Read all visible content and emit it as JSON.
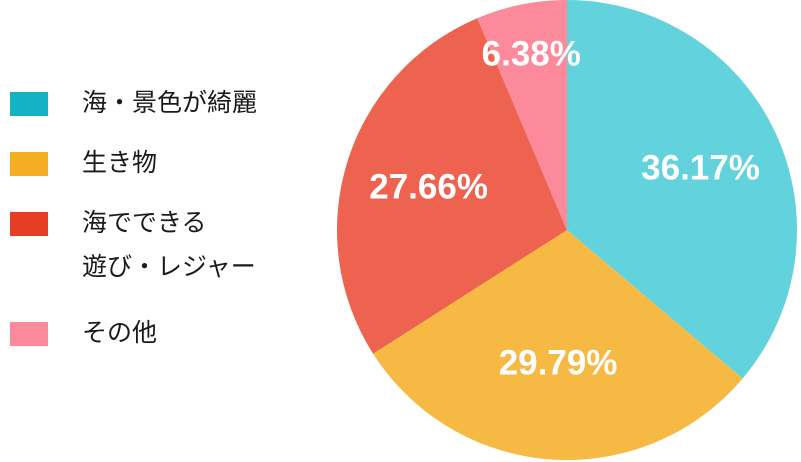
{
  "chart_data": {
    "type": "pie",
    "categories": [
      "海・景色が綺麗",
      "生き物",
      "海でできる\n遊び・レジャー",
      "その他"
    ],
    "values": [
      36.17,
      29.79,
      27.66,
      6.38
    ],
    "labels": [
      "36.17%",
      "29.79%",
      "27.66%",
      "6.38%"
    ],
    "colors": [
      "#62d2dc",
      "#f6b944",
      "#ee6350",
      "#fc8a9a"
    ],
    "legend_colors": [
      "#13b3c4",
      "#f5ae21",
      "#e63d25",
      "#fc8a9a"
    ],
    "legend_position": "left"
  }
}
